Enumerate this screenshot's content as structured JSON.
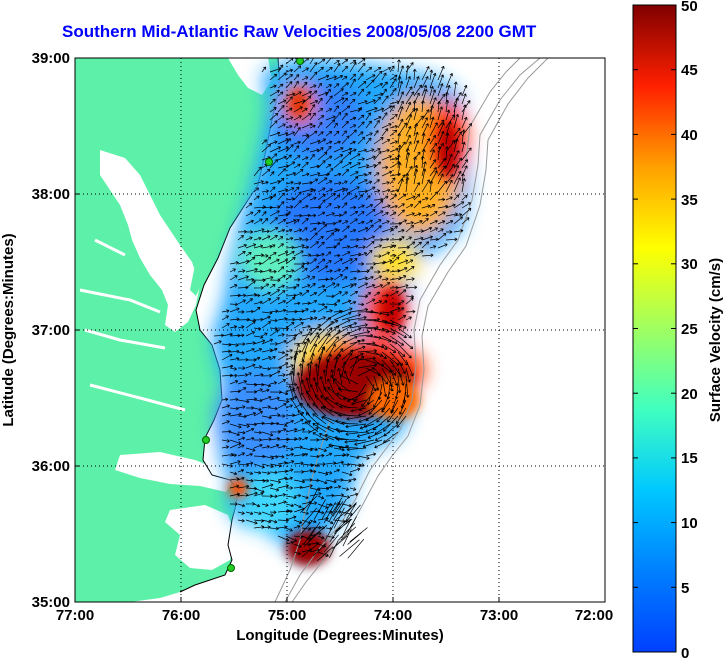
{
  "title": "Southern Mid-Atlantic Raw Velocities 2008/05/08 2200 GMT",
  "x_axis": {
    "label": "Longitude (Degrees:Minutes)",
    "ticks": [
      "77:00",
      "76:00",
      "75:00",
      "74:00",
      "73:00",
      "72:00"
    ]
  },
  "y_axis": {
    "label": "Latitude (Degrees:Minutes)",
    "ticks": [
      "39:00",
      "38:00",
      "37:00",
      "36:00",
      "35:00"
    ]
  },
  "colorbar": {
    "label": "Surface Velocity (cm/s)",
    "ticks": [
      "50",
      "45",
      "40",
      "35",
      "30",
      "25",
      "20",
      "15",
      "10",
      "5",
      "0"
    ],
    "range": [
      0,
      50
    ],
    "colormap": "jet"
  },
  "colors": {
    "land": "#5cf0a8",
    "ocean": "#ffffff",
    "title": "#0000ff",
    "coastline": "#000000",
    "bathymetry": "#999999",
    "station": "#22cc22"
  }
}
